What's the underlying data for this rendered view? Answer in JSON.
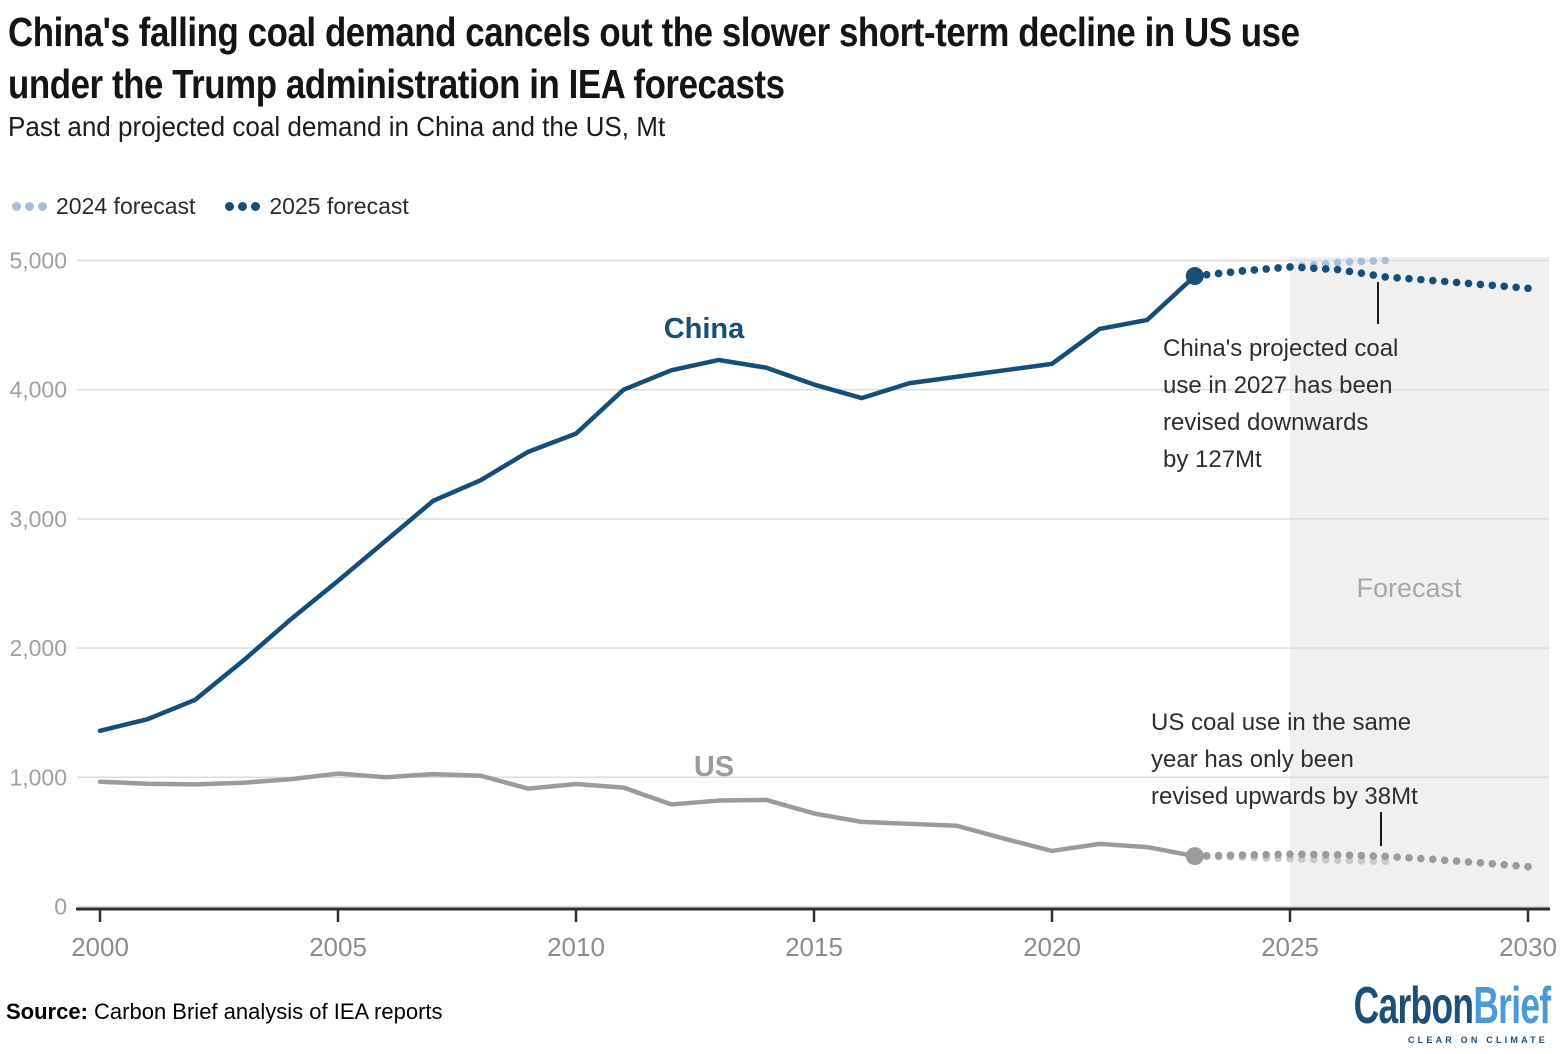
{
  "header": {
    "title_lines": [
      "China's falling coal demand cancels out the slower short-term decline in US use",
      "under the Trump administration in IEA forecasts"
    ]
  },
  "chart_data": {
    "type": "line",
    "title": "China's falling coal demand cancels out the slower short-term decline in US use under the Trump administration in IEA forecasts",
    "subtitle": "Past and projected coal demand in China and the US, Mt",
    "unit": "Mt",
    "xlim": [
      2000,
      2030
    ],
    "ylim": [
      0,
      5000
    ],
    "grid": "horizontal",
    "legend_position": "top-left",
    "xticks": [
      2000,
      2005,
      2010,
      2015,
      2020,
      2025,
      2030
    ],
    "yticks": [
      0,
      1000,
      2000,
      3000,
      4000,
      5000
    ],
    "ytick_labels": [
      "0",
      "1,000",
      "2,000",
      "3,000",
      "4,000",
      "5,000"
    ],
    "legend": [
      {
        "label": "2024 forecast",
        "color": "#a9bfd7"
      },
      {
        "label": "2025 forecast",
        "color": "#174e78"
      }
    ],
    "colors": {
      "china": "#174e78",
      "china_light": "#a9bfd7",
      "us": "#9b9b9b",
      "us_light": "#c9c9c9",
      "forecast_band": "#f0f0f0",
      "grid": "#dcdcdc",
      "axis": "#2e2e2e",
      "tick_label": "#8c8c8c",
      "ytick_label": "#a0a0a0"
    },
    "series": [
      {
        "name": "China historical",
        "style": "solid",
        "color_key": "china",
        "x": [
          2000,
          2001,
          2002,
          2003,
          2004,
          2005,
          2006,
          2007,
          2008,
          2009,
          2010,
          2011,
          2012,
          2013,
          2014,
          2015,
          2016,
          2017,
          2018,
          2019,
          2020,
          2021,
          2022,
          2023
        ],
        "values": [
          1360,
          1450,
          1600,
          1900,
          2220,
          2520,
          2830,
          3140,
          3300,
          3520,
          3660,
          4000,
          4150,
          4230,
          4170,
          4040,
          3935,
          4050,
          4100,
          4150,
          4200,
          4470,
          4540,
          4880
        ]
      },
      {
        "name": "US historical",
        "style": "solid",
        "color_key": "us",
        "x": [
          2000,
          2001,
          2002,
          2003,
          2004,
          2005,
          2006,
          2007,
          2008,
          2009,
          2010,
          2011,
          2012,
          2013,
          2014,
          2015,
          2016,
          2017,
          2018,
          2019,
          2020,
          2021,
          2022,
          2023
        ],
        "values": [
          966,
          950,
          945,
          958,
          985,
          1029,
          1000,
          1025,
          1012,
          912,
          948,
          920,
          790,
          820,
          825,
          720,
          655,
          640,
          625,
          525,
          430,
          485,
          460,
          390
        ]
      },
      {
        "name": "China 2024 forecast",
        "style": "dotted",
        "color_key": "china_light",
        "x": [
          2023,
          2024,
          2025,
          2026,
          2027
        ],
        "values": [
          4880,
          4915,
          4950,
          4985,
          5000
        ]
      },
      {
        "name": "US 2024 forecast",
        "style": "dotted",
        "color_key": "us_light",
        "x": [
          2023,
          2024,
          2025,
          2026,
          2027
        ],
        "values": [
          390,
          382,
          370,
          358,
          350
        ]
      },
      {
        "name": "China 2025 forecast",
        "style": "dotted",
        "color_key": "china",
        "x": [
          2023,
          2024,
          2025,
          2026,
          2027,
          2028,
          2029,
          2030
        ],
        "values": [
          4880,
          4920,
          4950,
          4930,
          4873,
          4845,
          4815,
          4785
        ]
      },
      {
        "name": "US 2025 forecast",
        "style": "dotted",
        "color_key": "us",
        "x": [
          2023,
          2024,
          2025,
          2026,
          2027,
          2028,
          2029,
          2030
        ],
        "values": [
          390,
          398,
          405,
          400,
          388,
          365,
          338,
          308
        ]
      }
    ],
    "endpoints": [
      {
        "year": 2023,
        "value": 4880,
        "color_key": "china"
      },
      {
        "year": 2023,
        "value": 390,
        "color_key": "us"
      }
    ],
    "series_labels": {
      "china": "China",
      "us": "US"
    },
    "forecast_band": {
      "from": 2025,
      "label": "Forecast"
    },
    "annotations": {
      "china": {
        "target_year": 2027,
        "revision_mt": -127,
        "lines": [
          "China's projected coal",
          "use in 2027 has been",
          "revised downwards",
          "by 127Mt"
        ]
      },
      "us": {
        "target_year": 2027,
        "revision_mt": 38,
        "lines": [
          "US coal use in the same",
          "year has only been",
          "revised upwards by 38Mt"
        ]
      }
    }
  },
  "source": {
    "prefix": "Source:",
    "text": " Carbon Brief analysis of IEA reports"
  },
  "logo": {
    "part1": "Carbon",
    "part2": "Brief",
    "tagline": "CLEAR ON CLIMATE"
  }
}
